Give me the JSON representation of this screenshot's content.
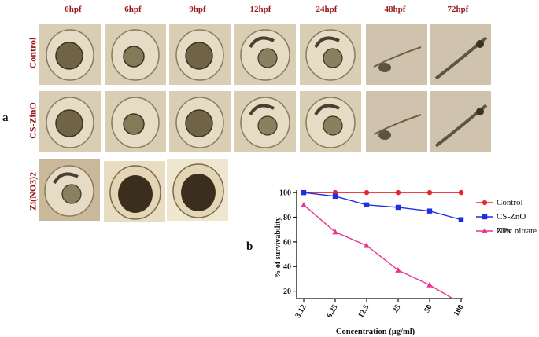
{
  "panel_a": {
    "letter": "a",
    "time_labels": [
      "0hpf",
      "6hpf",
      "9hpf",
      "12hpf",
      "24hpf",
      "48hpf",
      "72hpf"
    ],
    "row_labels": [
      "Control",
      "CS-ZinO",
      "Zi(NO3)2"
    ]
  },
  "panel_b": {
    "letter": "b"
  },
  "chart_data": {
    "type": "line",
    "categories": [
      "3.12",
      "6.25",
      "12.5",
      "25",
      "50",
      "100"
    ],
    "xlabel": "Concentration (µg/ml)",
    "ylabel": "% of survivability",
    "ylim": [
      14,
      102
    ],
    "yticks": [
      20,
      40,
      60,
      80,
      100
    ],
    "legend_position": "right",
    "series": [
      {
        "name": "Control",
        "color": "#e8262c",
        "marker": "circle",
        "values": [
          100,
          100,
          100,
          100,
          100,
          100
        ]
      },
      {
        "name": "CS-ZnO NPs",
        "color": "#1f2ee0",
        "marker": "square",
        "values": [
          100,
          97,
          90,
          88,
          85,
          78
        ]
      },
      {
        "name": "Zinc nitrate",
        "color": "#e8368f",
        "marker": "triangle",
        "values": [
          90,
          68,
          57,
          37,
          25,
          10
        ]
      }
    ]
  }
}
